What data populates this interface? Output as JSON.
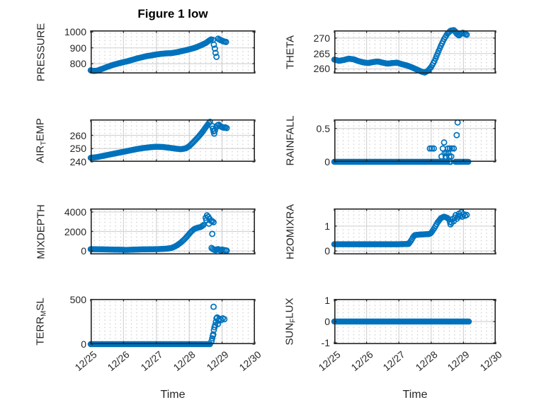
{
  "title": "Figure 1 low",
  "xlabel": "Time",
  "xtick_labels": [
    "12/25",
    "12/26",
    "12/27",
    "12/28",
    "12/29",
    "12/30"
  ],
  "marker_color": "#0072BD",
  "axis_color": "#262626",
  "grid_color": "#d4d4d4",
  "minor_dot_color": "#c9c9c9",
  "chart_data": [
    {
      "type": "scatter",
      "ylabel": "PRESSURE",
      "ylabel_segments": [
        {
          "t": "PRESSURE",
          "sub": false
        }
      ],
      "xlim": [
        0,
        5
      ],
      "ylim": [
        738,
        1010
      ],
      "ytick_values": [
        800,
        900,
        1000
      ],
      "ytick_labels": [
        "800",
        "900",
        "1000"
      ],
      "series": [
        {
          "anchors": [
            [
              0,
              758
            ],
            [
              0.08,
              754
            ],
            [
              0.2,
              756
            ],
            [
              0.35,
              767
            ],
            [
              0.5,
              779
            ],
            [
              0.65,
              790
            ],
            [
              0.8,
              799
            ],
            [
              0.95,
              807
            ],
            [
              1.1,
              814
            ],
            [
              1.25,
              823
            ],
            [
              1.4,
              832
            ],
            [
              1.55,
              840
            ],
            [
              1.7,
              847
            ],
            [
              1.85,
              852
            ],
            [
              2.0,
              858
            ],
            [
              2.15,
              862
            ],
            [
              2.3,
              865
            ],
            [
              2.45,
              866
            ],
            [
              2.6,
              871
            ],
            [
              2.75,
              878
            ],
            [
              2.9,
              885
            ],
            [
              3.05,
              893
            ],
            [
              3.2,
              902
            ],
            [
              3.35,
              915
            ],
            [
              3.5,
              930
            ],
            [
              3.6,
              945
            ],
            [
              3.68,
              955
            ]
          ]
        }
      ],
      "scatter": [
        [
          3.72,
          950
        ],
        [
          3.75,
          920
        ],
        [
          3.78,
          895
        ],
        [
          3.8,
          868
        ],
        [
          3.83,
          843
        ],
        [
          3.88,
          958
        ],
        [
          3.92,
          952
        ],
        [
          3.96,
          948
        ],
        [
          4.0,
          945
        ],
        [
          4.04,
          941
        ],
        [
          4.08,
          939
        ],
        [
          4.12,
          937
        ]
      ]
    },
    {
      "type": "scatter",
      "ylabel": "THETA",
      "ylabel_segments": [
        {
          "t": "THETA",
          "sub": false
        }
      ],
      "xlim": [
        0,
        5
      ],
      "ylim": [
        258.5,
        272.5
      ],
      "ytick_values": [
        260,
        265,
        270
      ],
      "ytick_labels": [
        "260",
        "265",
        "270"
      ],
      "series": [
        {
          "anchors": [
            [
              0,
              263
            ],
            [
              0.15,
              262.6
            ],
            [
              0.3,
              262.9
            ],
            [
              0.45,
              263.3
            ],
            [
              0.6,
              263.1
            ],
            [
              0.75,
              262.5
            ],
            [
              0.9,
              262.1
            ],
            [
              1.05,
              261.9
            ],
            [
              1.2,
              262.2
            ],
            [
              1.35,
              262.4
            ],
            [
              1.5,
              262
            ],
            [
              1.65,
              261.7
            ],
            [
              1.8,
              261.9
            ],
            [
              1.95,
              262
            ],
            [
              2.1,
              261.5
            ],
            [
              2.25,
              261.1
            ],
            [
              2.4,
              260.5
            ],
            [
              2.55,
              259.8
            ],
            [
              2.7,
              259.1
            ],
            [
              2.8,
              258.8
            ],
            [
              2.9,
              259.4
            ],
            [
              3.0,
              260.6
            ],
            [
              3.1,
              262.5
            ],
            [
              3.2,
              265
            ],
            [
              3.3,
              267.5
            ],
            [
              3.4,
              269.7
            ],
            [
              3.5,
              271.4
            ],
            [
              3.6,
              272.4
            ],
            [
              3.7,
              272.6
            ]
          ]
        }
      ],
      "scatter": [
        [
          3.74,
          272.2
        ],
        [
          3.78,
          271.6
        ],
        [
          3.82,
          271.2
        ],
        [
          3.86,
          270.9
        ],
        [
          3.9,
          271.2
        ],
        [
          3.94,
          271.5
        ],
        [
          3.98,
          271.7
        ],
        [
          4.02,
          271.6
        ],
        [
          4.06,
          271.3
        ],
        [
          4.1,
          271.1
        ]
      ]
    },
    {
      "type": "scatter",
      "ylabel": "AIR_TEMP",
      "ylabel_segments": [
        {
          "t": "AIR",
          "sub": false
        },
        {
          "t": "T",
          "sub": true
        },
        {
          "t": "EMP",
          "sub": false
        }
      ],
      "xlim": [
        0,
        5
      ],
      "ylim": [
        240,
        272
      ],
      "ytick_values": [
        240,
        250,
        260
      ],
      "ytick_labels": [
        "240",
        "250",
        "260"
      ],
      "series": [
        {
          "anchors": [
            [
              0,
              243
            ],
            [
              0.2,
              243.6
            ],
            [
              0.4,
              244.6
            ],
            [
              0.6,
              245.6
            ],
            [
              0.8,
              246.6
            ],
            [
              1.0,
              247.6
            ],
            [
              1.2,
              248.6
            ],
            [
              1.4,
              249.6
            ],
            [
              1.6,
              250.4
            ],
            [
              1.8,
              251
            ],
            [
              2.0,
              251.4
            ],
            [
              2.2,
              251.2
            ],
            [
              2.4,
              250.6
            ],
            [
              2.6,
              249.9
            ],
            [
              2.75,
              249.5
            ],
            [
              2.9,
              250.2
            ],
            [
              3.0,
              251.8
            ],
            [
              3.1,
              254.2
            ],
            [
              3.2,
              256.8
            ],
            [
              3.3,
              259.5
            ],
            [
              3.4,
              262.5
            ],
            [
              3.5,
              266
            ],
            [
              3.6,
              269.3
            ],
            [
              3.66,
              271
            ]
          ]
        }
      ],
      "scatter": [
        [
          3.7,
          267
        ],
        [
          3.72,
          265
        ],
        [
          3.74,
          263
        ],
        [
          3.76,
          261.3
        ],
        [
          3.78,
          263.5
        ],
        [
          3.82,
          266
        ],
        [
          3.86,
          267.5
        ],
        [
          3.9,
          268
        ],
        [
          3.94,
          267
        ],
        [
          3.98,
          266.5
        ],
        [
          4.02,
          266
        ],
        [
          4.06,
          265.8
        ],
        [
          4.1,
          266
        ],
        [
          4.14,
          265.5
        ]
      ]
    },
    {
      "type": "scatter",
      "ylabel": "RAINFALL",
      "ylabel_segments": [
        {
          "t": "RAINFALL",
          "sub": false
        }
      ],
      "xlim": [
        0,
        5
      ],
      "ylim": [
        0,
        0.635
      ],
      "ytick_values": [
        0,
        0.5
      ],
      "ytick_labels": [
        "0",
        "0.5"
      ],
      "series": [
        {
          "anchors": [
            [
              0,
              0
            ],
            [
              3.5,
              0
            ]
          ]
        },
        {
          "anchors": [
            [
              3.75,
              0
            ],
            [
              4.18,
              0
            ]
          ]
        }
      ],
      "scatter": [
        [
          2.96,
          0.2
        ],
        [
          3.02,
          0.2
        ],
        [
          3.08,
          0.2
        ],
        [
          3.36,
          0.2
        ],
        [
          3.52,
          0.2
        ],
        [
          3.58,
          0.2
        ],
        [
          3.64,
          0.2
        ],
        [
          3.7,
          0.2
        ],
        [
          3.4,
          0.29
        ],
        [
          3.42,
          0.13
        ],
        [
          3.47,
          0.13
        ],
        [
          3.53,
          0.13
        ],
        [
          3.32,
          0.08
        ],
        [
          3.45,
          0.08
        ],
        [
          3.56,
          0.08
        ],
        [
          3.62,
          0.08
        ],
        [
          3.79,
          0.4
        ],
        [
          3.82,
          0.59
        ],
        [
          3.56,
          0
        ],
        [
          3.6,
          0
        ]
      ]
    },
    {
      "type": "scatter",
      "ylabel": "MIXDEPTH",
      "ylabel_segments": [
        {
          "t": "MIXDEPTH",
          "sub": false
        }
      ],
      "xlim": [
        0,
        5
      ],
      "ylim": [
        -360,
        4360
      ],
      "ytick_values": [
        0,
        2000,
        4000
      ],
      "ytick_labels": [
        "0",
        "2000",
        "4000"
      ],
      "series": [
        {
          "anchors": [
            [
              0,
              180
            ],
            [
              0.3,
              160
            ],
            [
              0.6,
              140
            ],
            [
              0.9,
              120
            ],
            [
              1.1,
              100
            ],
            [
              1.3,
              130
            ],
            [
              1.5,
              150
            ],
            [
              1.7,
              160
            ],
            [
              1.9,
              170
            ],
            [
              2.1,
              185
            ],
            [
              2.3,
              225
            ],
            [
              2.45,
              290
            ],
            [
              2.55,
              420
            ],
            [
              2.65,
              620
            ],
            [
              2.75,
              870
            ],
            [
              2.85,
              1180
            ],
            [
              2.95,
              1550
            ],
            [
              3.05,
              1950
            ],
            [
              3.15,
              2250
            ],
            [
              3.25,
              2380
            ],
            [
              3.35,
              2450
            ],
            [
              3.45,
              2700
            ]
          ]
        }
      ],
      "scatter": [
        [
          3.5,
          3400
        ],
        [
          3.54,
          3650
        ],
        [
          3.58,
          3500
        ],
        [
          3.62,
          3300
        ],
        [
          3.66,
          3100
        ],
        [
          3.7,
          3050
        ],
        [
          3.74,
          2950
        ],
        [
          3.6,
          2800
        ],
        [
          3.52,
          3150
        ],
        [
          3.7,
          1750
        ],
        [
          3.68,
          300
        ],
        [
          3.72,
          200
        ],
        [
          3.76,
          120
        ],
        [
          3.8,
          80
        ],
        [
          3.84,
          150
        ],
        [
          3.88,
          180
        ],
        [
          3.92,
          100
        ],
        [
          3.96,
          60
        ],
        [
          4.0,
          130
        ],
        [
          4.05,
          90
        ],
        [
          4.1,
          60
        ],
        [
          4.14,
          30
        ]
      ]
    },
    {
      "type": "scatter",
      "ylabel": "H2OMIXRA",
      "ylabel_segments": [
        {
          "t": "H2OMIXRA",
          "sub": false
        }
      ],
      "xlim": [
        0,
        5
      ],
      "ylim": [
        -0.14,
        1.71
      ],
      "ytick_values": [
        0,
        1
      ],
      "ytick_labels": [
        "0",
        "1"
      ],
      "series": [
        {
          "anchors": [
            [
              0,
              0.27
            ],
            [
              0.4,
              0.27
            ],
            [
              0.8,
              0.27
            ],
            [
              1.2,
              0.27
            ],
            [
              1.6,
              0.27
            ],
            [
              2.0,
              0.27
            ],
            [
              2.3,
              0.28
            ],
            [
              2.38,
              0.42
            ],
            [
              2.45,
              0.58
            ],
            [
              2.5,
              0.64
            ],
            [
              2.65,
              0.66
            ],
            [
              2.8,
              0.67
            ],
            [
              2.95,
              0.68
            ],
            [
              3.0,
              0.73
            ],
            [
              3.1,
              0.92
            ],
            [
              3.2,
              1.15
            ],
            [
              3.3,
              1.32
            ],
            [
              3.4,
              1.38
            ],
            [
              3.5,
              1.33
            ],
            [
              3.55,
              1.27
            ]
          ]
        }
      ],
      "scatter": [
        [
          3.58,
          1.17
        ],
        [
          3.6,
          1.07
        ],
        [
          3.63,
          1.14
        ],
        [
          3.66,
          1.28
        ],
        [
          3.7,
          1.2
        ],
        [
          3.73,
          1.34
        ],
        [
          3.76,
          1.44
        ],
        [
          3.8,
          1.3
        ],
        [
          3.83,
          1.38
        ],
        [
          3.86,
          1.5
        ],
        [
          3.9,
          1.42
        ],
        [
          3.93,
          1.55
        ],
        [
          3.96,
          1.38
        ],
        [
          4.0,
          1.48
        ],
        [
          4.05,
          1.42
        ],
        [
          4.1,
          1.45
        ]
      ]
    },
    {
      "type": "scatter",
      "ylabel": "TERR_MSL",
      "ylabel_segments": [
        {
          "t": "TERR",
          "sub": false
        },
        {
          "t": "M",
          "sub": true
        },
        {
          "t": "SL",
          "sub": false
        }
      ],
      "xlim": [
        0,
        5
      ],
      "ylim": [
        0,
        508
      ],
      "ytick_values": [
        0,
        500
      ],
      "ytick_labels": [
        "0",
        "500"
      ],
      "series": [
        {
          "anchors": [
            [
              0,
              0
            ],
            [
              3.64,
              0
            ]
          ]
        }
      ],
      "scatter": [
        [
          3.68,
          35
        ],
        [
          3.7,
          65
        ],
        [
          3.72,
          95
        ],
        [
          3.73,
          110
        ],
        [
          3.74,
          420
        ],
        [
          3.75,
          160
        ],
        [
          3.77,
          190
        ],
        [
          3.79,
          215
        ],
        [
          3.81,
          250
        ],
        [
          3.83,
          290
        ],
        [
          3.85,
          300
        ],
        [
          3.87,
          225
        ],
        [
          3.89,
          265
        ],
        [
          3.92,
          285
        ],
        [
          3.97,
          270
        ],
        [
          4.02,
          290
        ],
        [
          4.07,
          280
        ]
      ]
    },
    {
      "type": "scatter",
      "ylabel": "SUN_FLUX",
      "ylabel_segments": [
        {
          "t": "SUN",
          "sub": false
        },
        {
          "t": "F",
          "sub": true
        },
        {
          "t": "LUX",
          "sub": false
        }
      ],
      "xlim": [
        0,
        5
      ],
      "ylim": [
        -1.07,
        1.07
      ],
      "ytick_values": [
        -1,
        0,
        1
      ],
      "ytick_labels": [
        "-1",
        "0",
        "1"
      ],
      "series": [
        {
          "anchors": [
            [
              0,
              0
            ],
            [
              4.17,
              0
            ]
          ]
        }
      ],
      "scatter": []
    }
  ]
}
